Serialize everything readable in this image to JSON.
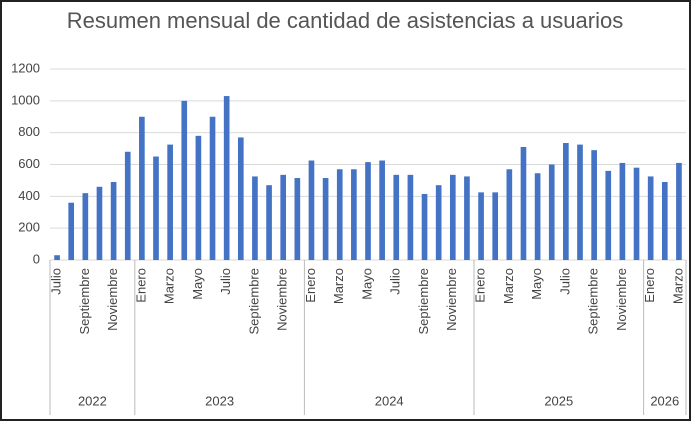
{
  "chart_data": {
    "type": "bar",
    "title": "Resumen mensual de cantidad de asistencias a usuarios",
    "color": "#4472c4",
    "ylim": [
      0,
      1200
    ],
    "yticks": [
      0,
      200,
      400,
      600,
      800,
      1000,
      1200
    ],
    "grid": true,
    "groups": [
      {
        "name": "2022",
        "categories": [
          "Julio",
          null,
          "Septiembre",
          null,
          "Noviembre",
          null
        ],
        "values": [
          30,
          360,
          420,
          460,
          490,
          680
        ]
      },
      {
        "name": "2023",
        "categories": [
          "Enero",
          null,
          "Marzo",
          null,
          "Mayo",
          null,
          "Julio",
          null,
          "Septiembre",
          null,
          "Noviembre",
          null
        ],
        "values": [
          900,
          650,
          725,
          1000,
          780,
          900,
          1030,
          770,
          525,
          470,
          535,
          515
        ]
      },
      {
        "name": "2024",
        "categories": [
          "Enero",
          null,
          "Marzo",
          null,
          "Mayo",
          null,
          "Julio",
          null,
          "Septiembre",
          null,
          "Noviembre",
          null
        ],
        "values": [
          625,
          515,
          570,
          570,
          615,
          625,
          535,
          535,
          415,
          470,
          535,
          525
        ]
      },
      {
        "name": "2025",
        "categories": [
          "Enero",
          null,
          "Marzo",
          null,
          "Mayo",
          null,
          "Julio",
          null,
          "Septiembre",
          null,
          "Noviembre",
          null
        ],
        "values": [
          425,
          425,
          570,
          710,
          545,
          600,
          735,
          725,
          690,
          560,
          610,
          580
        ]
      },
      {
        "name": "2026",
        "categories": [
          "Enero",
          null,
          "Marzo"
        ],
        "values": [
          525,
          490,
          610
        ]
      }
    ]
  }
}
